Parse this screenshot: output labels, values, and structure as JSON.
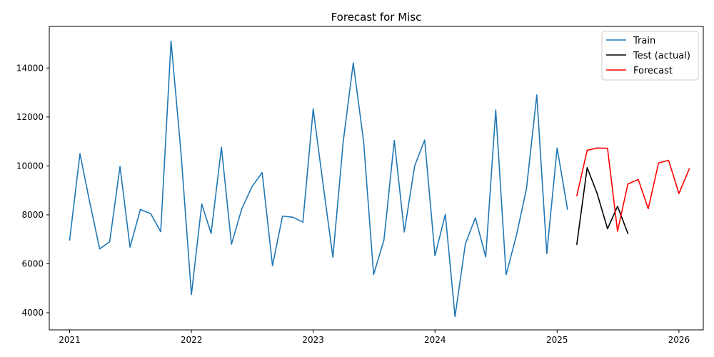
{
  "chart_data": {
    "type": "line",
    "title": "Forecast for Misc",
    "xlabel": "",
    "ylabel": "",
    "grid": false,
    "legend_position": "top-right",
    "xlim": [
      "2020-11-01",
      "2026-03-15"
    ],
    "ylim": [
      3300,
      15700
    ],
    "x_ticks": [
      {
        "date": "2021-01-01",
        "label": "2021"
      },
      {
        "date": "2022-01-01",
        "label": "2022"
      },
      {
        "date": "2023-01-01",
        "label": "2023"
      },
      {
        "date": "2024-01-01",
        "label": "2024"
      },
      {
        "date": "2025-01-01",
        "label": "2025"
      },
      {
        "date": "2026-01-01",
        "label": "2026"
      }
    ],
    "y_ticks": [
      4000,
      6000,
      8000,
      10000,
      12000,
      14000
    ],
    "y_tick_labels": [
      "4000",
      "6000",
      "8000",
      "10000",
      "12000",
      "14000"
    ],
    "series": [
      {
        "name": "Train",
        "color": "#1f77b4",
        "x": [
          "2021-01-01",
          "2021-02-01",
          "2021-03-01",
          "2021-04-01",
          "2021-05-01",
          "2021-06-01",
          "2021-07-01",
          "2021-08-01",
          "2021-09-01",
          "2021-10-01",
          "2021-11-01",
          "2021-12-01",
          "2022-01-01",
          "2022-02-01",
          "2022-03-01",
          "2022-04-01",
          "2022-05-01",
          "2022-06-01",
          "2022-07-01",
          "2022-08-01",
          "2022-09-01",
          "2022-10-01",
          "2022-11-01",
          "2022-12-01",
          "2023-01-01",
          "2023-02-01",
          "2023-03-01",
          "2023-04-01",
          "2023-05-01",
          "2023-06-01",
          "2023-07-01",
          "2023-08-01",
          "2023-09-01",
          "2023-10-01",
          "2023-11-01",
          "2023-12-01",
          "2024-01-01",
          "2024-02-01",
          "2024-03-01",
          "2024-04-01",
          "2024-05-01",
          "2024-06-01",
          "2024-07-01",
          "2024-08-01",
          "2024-09-01",
          "2024-10-01",
          "2024-11-01",
          "2024-12-01",
          "2025-01-01",
          "2025-02-01"
        ],
        "values": [
          6970,
          10500,
          8600,
          6610,
          6900,
          9980,
          6680,
          8220,
          8050,
          7310,
          15100,
          10500,
          4740,
          8440,
          7240,
          10760,
          6800,
          8250,
          9140,
          9730,
          5920,
          7950,
          7900,
          7700,
          12330,
          9100,
          6270,
          11000,
          14210,
          11000,
          5560,
          6970,
          11040,
          7300,
          10000,
          11060,
          6330,
          8020,
          3840,
          6810,
          7880,
          6280,
          12280,
          5550,
          7160,
          9060,
          12900,
          6420,
          10730,
          8230
        ]
      },
      {
        "name": "Test (actual)",
        "color": "#000000",
        "x": [
          "2025-03-01",
          "2025-04-01",
          "2025-05-01",
          "2025-06-01",
          "2025-07-01",
          "2025-08-01"
        ],
        "values": [
          6800,
          9930,
          8870,
          7430,
          8350,
          7240
        ]
      },
      {
        "name": "Forecast",
        "color": "#ff0000",
        "x": [
          "2025-03-01",
          "2025-04-01",
          "2025-05-01",
          "2025-06-01",
          "2025-07-01",
          "2025-08-01",
          "2025-09-01",
          "2025-10-01",
          "2025-11-01",
          "2025-12-01",
          "2026-01-01",
          "2026-02-01"
        ],
        "values": [
          8780,
          10640,
          10730,
          10720,
          7330,
          9260,
          9450,
          8250,
          10120,
          10230,
          8870,
          9880
        ]
      }
    ]
  }
}
